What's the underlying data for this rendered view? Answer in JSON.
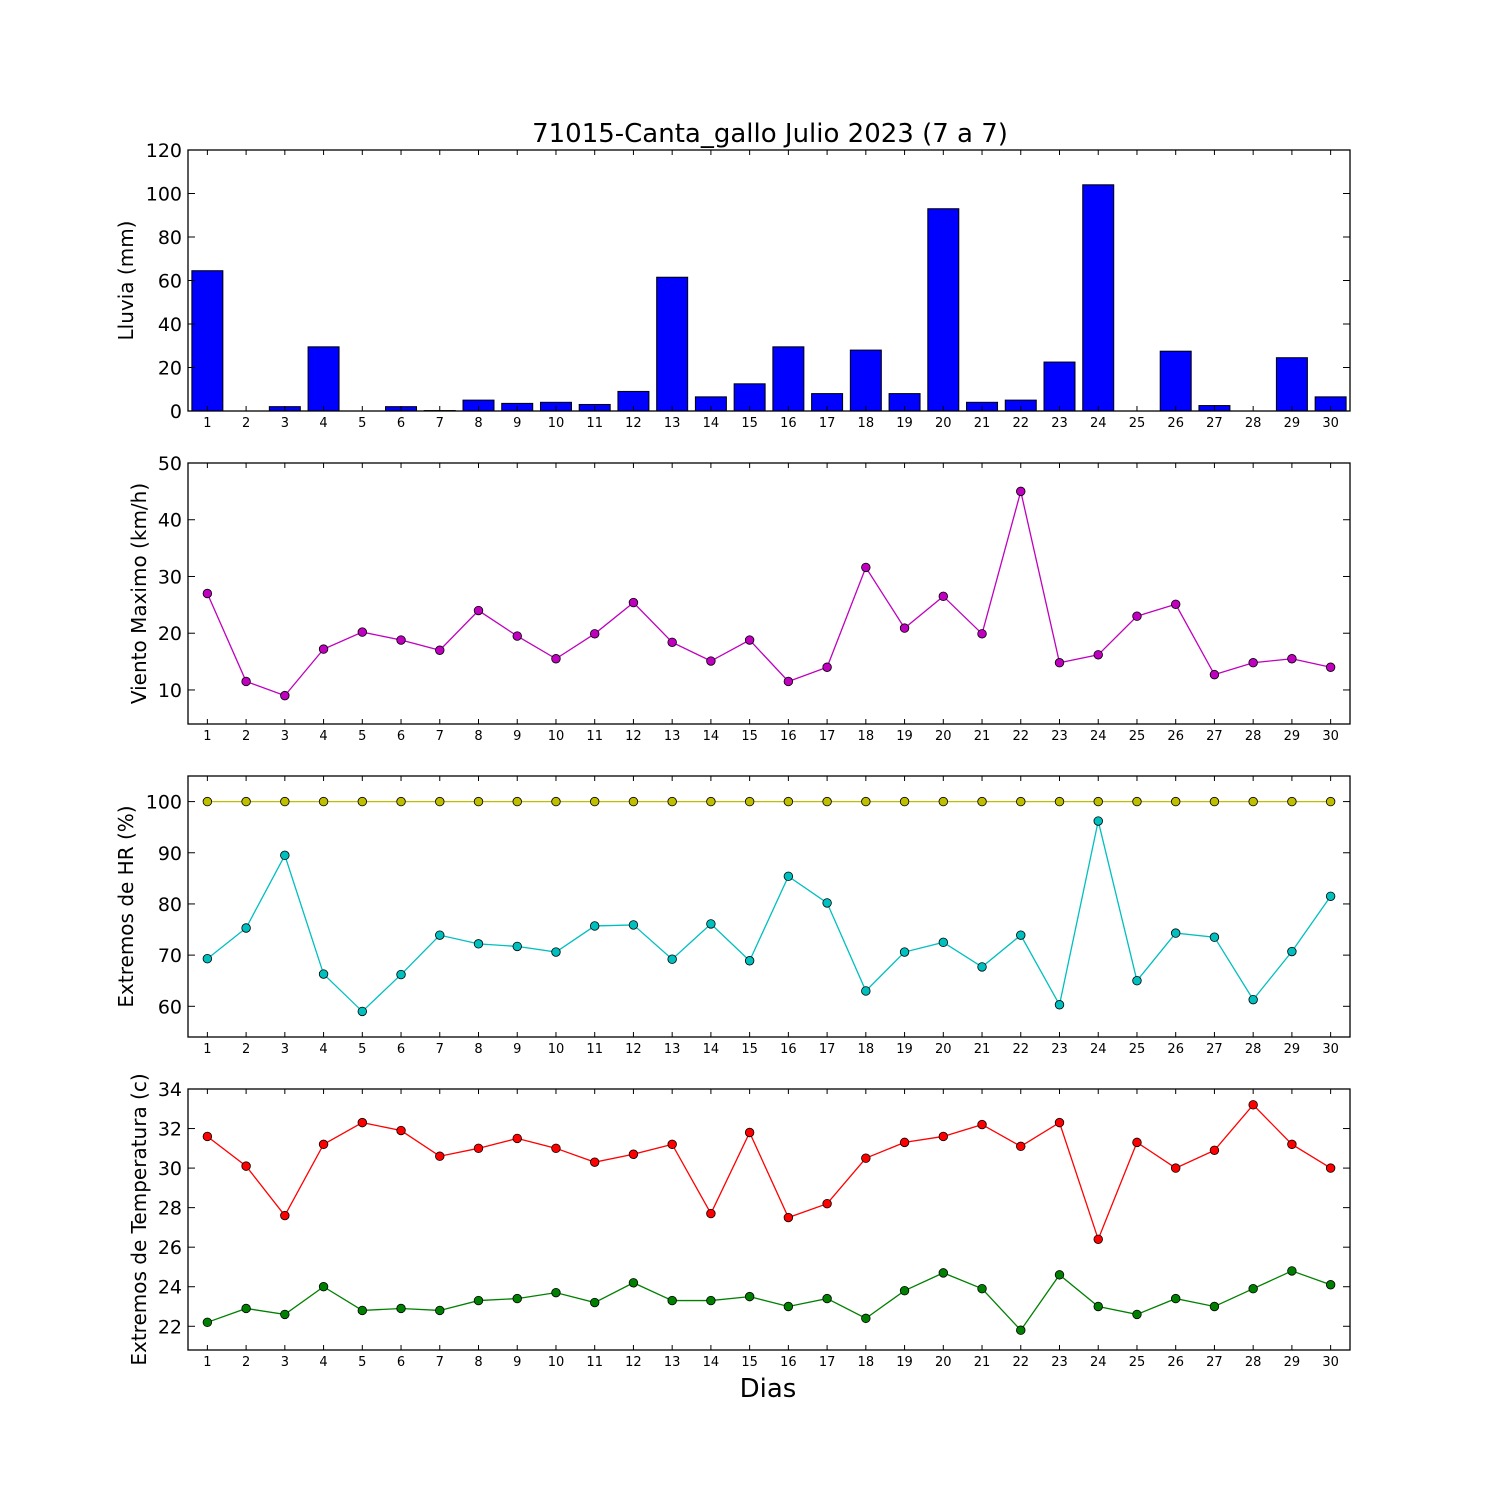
{
  "title": "71015-Canta_gallo Julio 2023  (7 a 7)",
  "xlabel": "Dias",
  "chart_data": [
    {
      "type": "bar",
      "ylabel": "Lluvia (mm)",
      "ylim": [
        0,
        120
      ],
      "yticks": [
        0,
        20,
        40,
        60,
        80,
        100,
        120
      ],
      "categories": [
        1,
        2,
        3,
        4,
        5,
        6,
        7,
        8,
        9,
        10,
        11,
        12,
        13,
        14,
        15,
        16,
        17,
        18,
        19,
        20,
        21,
        22,
        23,
        24,
        25,
        26,
        27,
        28,
        29,
        30
      ],
      "series": [
        {
          "color": "#0000ff",
          "values": [
            64.5,
            0,
            2,
            29.5,
            0,
            2,
            0.2,
            5,
            3.5,
            4,
            3,
            9,
            61.5,
            6.5,
            12.5,
            29.5,
            8,
            28,
            8,
            93,
            4,
            5,
            22.5,
            104,
            0,
            27.5,
            2.5,
            0,
            24.5,
            6.5
          ]
        }
      ]
    },
    {
      "type": "line",
      "ylabel": "Viento Maximo (km/h)",
      "ylim": [
        4,
        50
      ],
      "yticks": [
        10,
        20,
        30,
        40,
        50
      ],
      "x": [
        1,
        2,
        3,
        4,
        5,
        6,
        7,
        8,
        9,
        10,
        11,
        12,
        13,
        14,
        15,
        16,
        17,
        18,
        19,
        20,
        21,
        22,
        23,
        24,
        25,
        26,
        27,
        28,
        29,
        30
      ],
      "series": [
        {
          "color": "#bf00bf",
          "values": [
            27,
            11.5,
            9,
            17.2,
            20.2,
            18.8,
            17,
            24,
            19.5,
            15.5,
            19.9,
            25.4,
            18.4,
            15.1,
            18.8,
            11.5,
            14,
            31.6,
            20.9,
            26.5,
            19.9,
            45,
            14.8,
            16.2,
            23,
            25.1,
            12.7,
            14.8,
            15.5,
            14
          ]
        }
      ]
    },
    {
      "type": "line",
      "ylabel": "Extremos de HR (%)",
      "ylim": [
        54,
        105
      ],
      "yticks": [
        60,
        70,
        80,
        90,
        100
      ],
      "x": [
        1,
        2,
        3,
        4,
        5,
        6,
        7,
        8,
        9,
        10,
        11,
        12,
        13,
        14,
        15,
        16,
        17,
        18,
        19,
        20,
        21,
        22,
        23,
        24,
        25,
        26,
        27,
        28,
        29,
        30
      ],
      "series": [
        {
          "color": "#bfbf00",
          "values": [
            100,
            100,
            100,
            100,
            100,
            100,
            100,
            100,
            100,
            100,
            100,
            100,
            100,
            100,
            100,
            100,
            100,
            100,
            100,
            100,
            100,
            100,
            100,
            100,
            100,
            100,
            100,
            100,
            100,
            100
          ]
        },
        {
          "color": "#00bfbf",
          "values": [
            69.3,
            75.3,
            89.5,
            66.3,
            59,
            66.2,
            73.9,
            72.2,
            71.7,
            70.6,
            75.7,
            75.9,
            69.2,
            76.1,
            68.9,
            85.4,
            80.2,
            63,
            70.6,
            72.5,
            67.7,
            73.9,
            60.3,
            96.2,
            65,
            74.3,
            73.5,
            61.3,
            70.7,
            81.5
          ]
        }
      ]
    },
    {
      "type": "line",
      "ylabel": "Extremos de Temperatura (c)",
      "ylim": [
        20.8,
        34
      ],
      "yticks": [
        22,
        24,
        26,
        28,
        30,
        32,
        34
      ],
      "x": [
        1,
        2,
        3,
        4,
        5,
        6,
        7,
        8,
        9,
        10,
        11,
        12,
        13,
        14,
        15,
        16,
        17,
        18,
        19,
        20,
        21,
        22,
        23,
        24,
        25,
        26,
        27,
        28,
        29,
        30
      ],
      "series": [
        {
          "color": "#ff0000",
          "values": [
            31.6,
            30.1,
            27.6,
            31.2,
            32.3,
            31.9,
            30.6,
            31,
            31.5,
            31,
            30.3,
            30.7,
            31.2,
            27.7,
            31.8,
            27.5,
            28.2,
            30.5,
            31.3,
            31.6,
            32.2,
            31.1,
            32.3,
            26.4,
            31.3,
            30,
            30.9,
            33.2,
            31.2,
            30
          ]
        },
        {
          "color": "#008000",
          "values": [
            22.2,
            22.9,
            22.6,
            24,
            22.8,
            22.9,
            22.8,
            23.3,
            23.4,
            23.7,
            23.2,
            24.2,
            23.3,
            23.3,
            23.5,
            23,
            23.4,
            22.4,
            23.8,
            24.7,
            23.9,
            21.8,
            24.6,
            23,
            22.6,
            23.4,
            23,
            23.9,
            24.8,
            24.1
          ]
        }
      ]
    }
  ]
}
